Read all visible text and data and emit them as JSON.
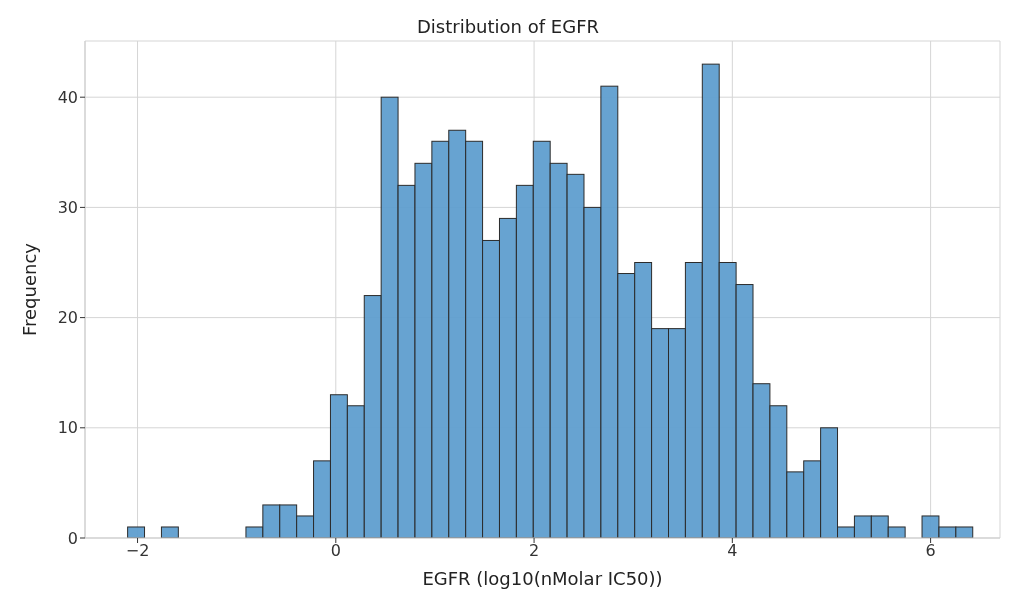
{
  "chart_data": {
    "type": "histogram",
    "title": "Distribution of EGFR",
    "xlabel": "EGFR (log10(nMolar IC50))",
    "ylabel": "Frequency",
    "bins": [
      -2.1,
      -1.9295,
      -1.759,
      -1.5885,
      -1.418,
      -1.2475,
      -1.077,
      -0.9065,
      -0.736,
      -0.5655,
      -0.395,
      -0.2245,
      -0.054,
      0.1165,
      0.287,
      0.4575,
      0.628,
      0.7985,
      0.969,
      1.1395,
      1.31,
      1.4805,
      1.651,
      1.8215,
      1.992,
      2.1625,
      2.333,
      2.5035,
      2.674,
      2.8445,
      3.015,
      3.1855,
      3.356,
      3.5265,
      3.697,
      3.8675,
      4.038,
      4.2085,
      4.379,
      4.5495,
      4.72,
      4.8905,
      5.061,
      5.2315,
      5.402,
      5.5725,
      5.743,
      5.9135,
      6.084,
      6.2545,
      6.425
    ],
    "values": [
      1,
      0,
      1,
      0,
      0,
      0,
      0,
      1,
      3,
      3,
      2,
      7,
      13,
      12,
      22,
      40,
      32,
      34,
      36,
      37,
      36,
      27,
      29,
      32,
      36,
      34,
      33,
      30,
      41,
      24,
      25,
      19,
      19,
      25,
      43,
      25,
      23,
      14,
      12,
      6,
      7,
      10,
      1,
      2,
      2,
      1,
      0,
      2,
      1,
      1
    ],
    "color": "#5f9ecf",
    "xlim": [
      -2.53,
      6.7
    ],
    "xticks": [
      {
        "value": -2,
        "label": "−2"
      },
      0,
      2,
      4,
      6
    ],
    "ylim": [
      0,
      45.1
    ],
    "yticks": [
      0,
      10,
      20,
      30,
      40
    ],
    "grid": true
  }
}
